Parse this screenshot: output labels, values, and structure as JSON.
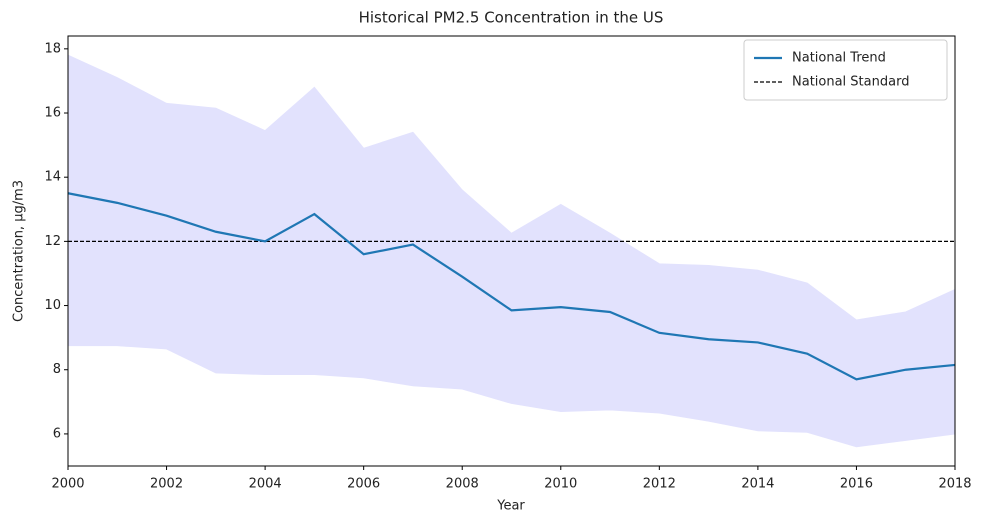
{
  "chart_data": {
    "type": "line",
    "title": "Historical PM2.5 Concentration in the US",
    "x_label": "Year",
    "y_label": "Concentration, µg/m3",
    "x": [
      2000,
      2001,
      2002,
      2003,
      2004,
      2005,
      2006,
      2007,
      2008,
      2009,
      2010,
      2011,
      2012,
      2013,
      2014,
      2015,
      2016,
      2017,
      2018
    ],
    "series": [
      {
        "name": "National Trend",
        "color": "#1f77b4",
        "values": [
          13.5,
          13.2,
          12.8,
          12.3,
          12.0,
          12.85,
          11.6,
          11.9,
          10.9,
          9.85,
          9.95,
          9.8,
          9.15,
          8.95,
          8.85,
          8.5,
          7.7,
          8.0,
          8.15
        ]
      }
    ],
    "band": {
      "color": "#e2e2fd",
      "upper": [
        17.8,
        17.1,
        16.3,
        16.15,
        15.45,
        16.8,
        14.9,
        15.4,
        13.6,
        12.25,
        13.15,
        12.25,
        11.3,
        11.25,
        11.1,
        10.7,
        9.55,
        9.8,
        10.5
      ],
      "lower": [
        8.75,
        8.75,
        8.65,
        7.9,
        7.85,
        7.85,
        7.75,
        7.5,
        7.4,
        6.95,
        6.7,
        6.75,
        6.65,
        6.4,
        6.1,
        6.05,
        5.6,
        5.8,
        6.0
      ]
    },
    "reference_line": {
      "name": "National Standard",
      "value": 12,
      "color": "#000000"
    },
    "xlim": [
      2000,
      2018
    ],
    "xticks": [
      2000,
      2002,
      2004,
      2006,
      2008,
      2010,
      2012,
      2014,
      2016,
      2018
    ],
    "ylim": [
      5,
      18.4
    ],
    "yticks": [
      6,
      8,
      10,
      12,
      14,
      16,
      18
    ],
    "legend": "upper right"
  }
}
